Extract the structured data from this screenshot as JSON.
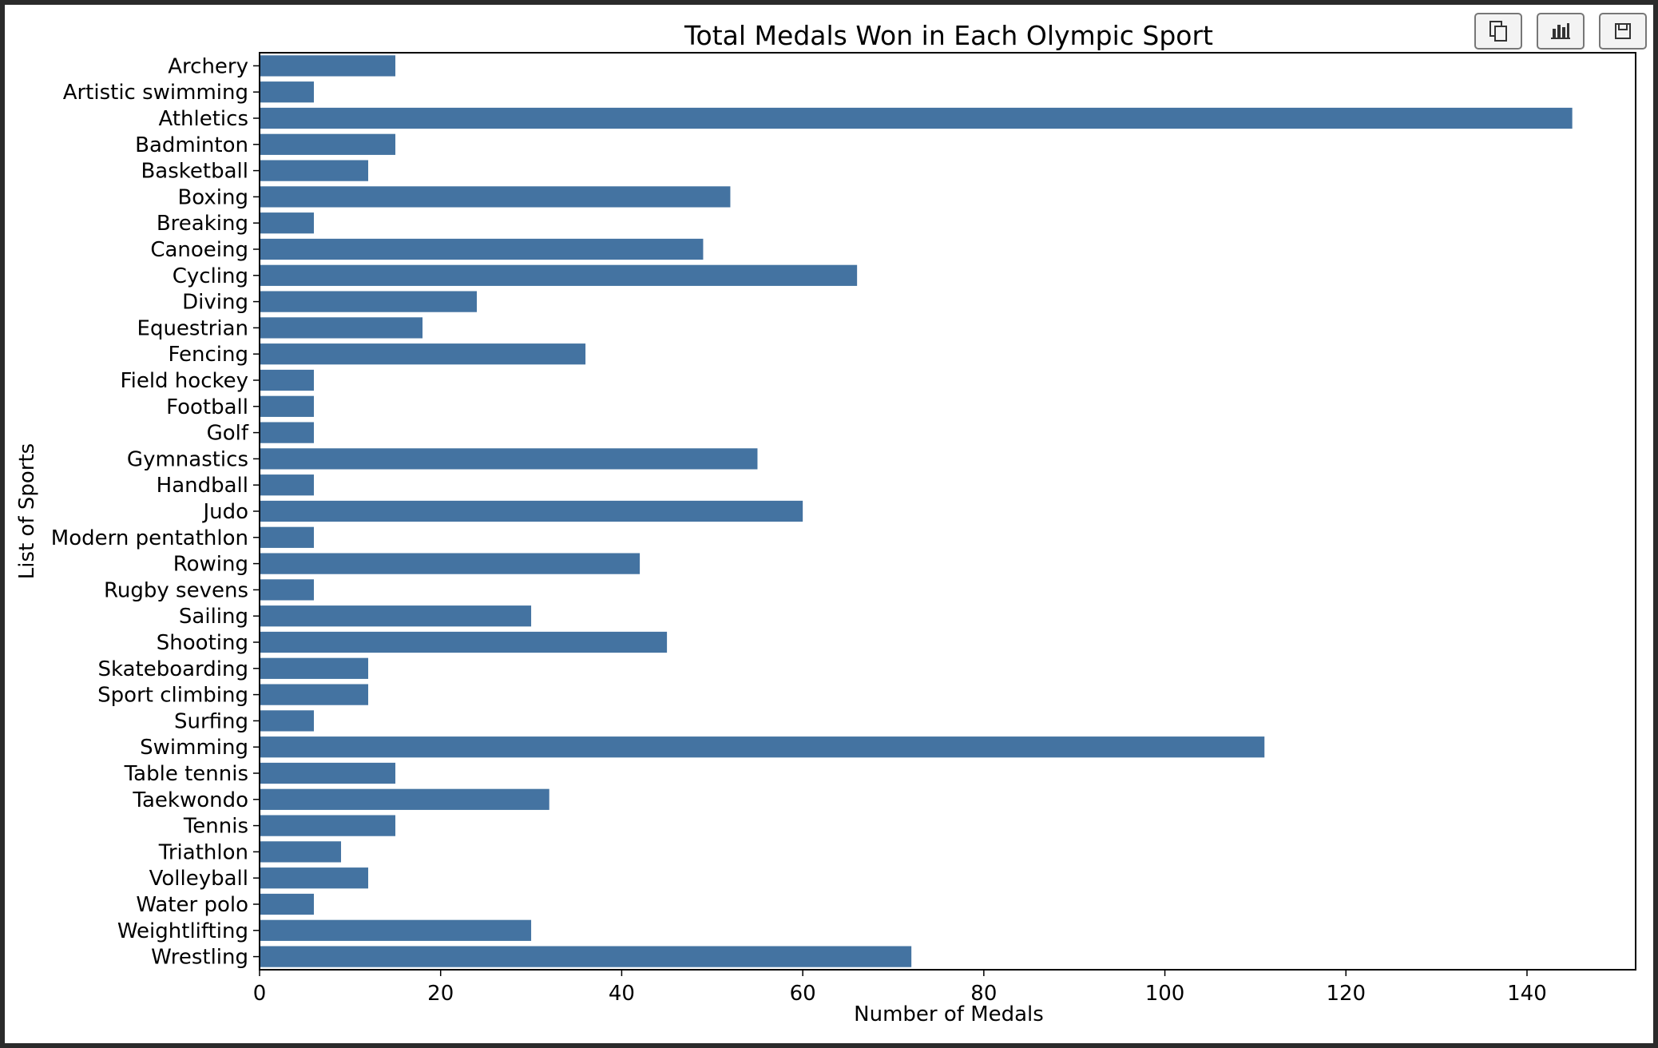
{
  "toolbar": {
    "buttons": [
      {
        "icon": "copy-icon"
      },
      {
        "icon": "bar-chart-icon"
      },
      {
        "icon": "save-icon"
      }
    ]
  },
  "chart_data": {
    "type": "bar",
    "orientation": "horizontal",
    "title": "Total Medals Won in Each Olympic Sport",
    "xlabel": "Number of Medals",
    "ylabel": "List of Sports",
    "xlim": [
      0,
      152
    ],
    "xticks": [
      0,
      20,
      40,
      60,
      80,
      100,
      120,
      140
    ],
    "grid": false,
    "bar_color": "#4473a1",
    "categories": [
      "Archery",
      "Artistic swimming",
      "Athletics",
      "Badminton",
      "Basketball",
      "Boxing",
      "Breaking",
      "Canoeing",
      "Cycling",
      "Diving",
      "Equestrian",
      "Fencing",
      "Field hockey",
      "Football",
      "Golf",
      "Gymnastics",
      "Handball",
      "Judo",
      "Modern pentathlon",
      "Rowing",
      "Rugby sevens",
      "Sailing",
      "Shooting",
      "Skateboarding",
      "Sport climbing",
      "Surfing",
      "Swimming",
      "Table tennis",
      "Taekwondo",
      "Tennis",
      "Triathlon",
      "Volleyball",
      "Water polo",
      "Weightlifting",
      "Wrestling"
    ],
    "values": [
      15,
      6,
      145,
      15,
      12,
      52,
      6,
      49,
      66,
      24,
      18,
      36,
      6,
      6,
      6,
      55,
      6,
      60,
      6,
      42,
      6,
      30,
      45,
      12,
      12,
      6,
      111,
      15,
      32,
      15,
      9,
      12,
      6,
      30,
      72
    ]
  }
}
